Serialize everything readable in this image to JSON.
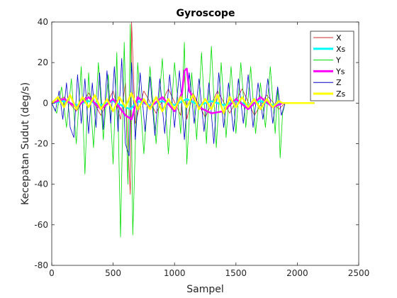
{
  "chart_data": {
    "type": "line",
    "title": "Gyroscope",
    "xlabel": "Sampel",
    "ylabel": "Kecepatan Sudut (deg/s)",
    "xlim": [
      0,
      2500
    ],
    "ylim": [
      -80,
      40
    ],
    "xticks": [
      0,
      500,
      1000,
      1500,
      2000,
      2500
    ],
    "xtick_labels": [
      "0",
      "500",
      "1000",
      "1500",
      "2000",
      "2500"
    ],
    "yticks": [
      -80,
      -60,
      -40,
      -20,
      0,
      20,
      40
    ],
    "ytick_labels": [
      "-80",
      "-60",
      "-40",
      "-20",
      "0",
      "20",
      "40"
    ],
    "grid": false,
    "legend_position": "top-right",
    "series": [
      {
        "name": "X",
        "color": "#d62728",
        "width": 0.8,
        "x": [
          0,
          100,
          200,
          300,
          400,
          500,
          560,
          600,
          620,
          640,
          650,
          680,
          750,
          850,
          950,
          1050,
          1080,
          1100,
          1150,
          1250,
          1350,
          1450,
          1550,
          1650,
          1750,
          1850,
          1900,
          2000,
          2140
        ],
        "y": [
          0,
          3,
          -4,
          5,
          -6,
          6,
          -8,
          10,
          -20,
          -45,
          40,
          -10,
          6,
          -5,
          7,
          -6,
          15,
          -8,
          5,
          -7,
          6,
          -5,
          7,
          -6,
          4,
          -3,
          0,
          0,
          0
        ]
      },
      {
        "name": "Xs",
        "color": "#00ffff",
        "width": 2.5,
        "x": [
          0,
          100,
          200,
          300,
          400,
          500,
          600,
          640,
          700,
          800,
          900,
          1000,
          1100,
          1200,
          1300,
          1400,
          1500,
          1600,
          1700,
          1800,
          1880,
          2000,
          2140
        ],
        "y": [
          0,
          1,
          -1,
          1,
          -1,
          1,
          -2,
          -3,
          1,
          -1,
          1,
          -1,
          2,
          -1,
          1,
          -1,
          1,
          -1,
          1,
          -1,
          0,
          0,
          0
        ]
      },
      {
        "name": "Y",
        "color": "#00dd00",
        "width": 0.8,
        "x": [
          0,
          40,
          80,
          120,
          160,
          200,
          240,
          270,
          300,
          340,
          380,
          420,
          460,
          500,
          530,
          560,
          590,
          620,
          640,
          660,
          700,
          750,
          800,
          850,
          900,
          950,
          1000,
          1050,
          1080,
          1100,
          1140,
          1180,
          1220,
          1260,
          1300,
          1340,
          1380,
          1420,
          1460,
          1500,
          1540,
          1580,
          1620,
          1660,
          1700,
          1740,
          1780,
          1820,
          1840,
          1860,
          1880,
          1900,
          2000,
          2140
        ],
        "y": [
          0,
          -5,
          8,
          -12,
          12,
          -20,
          18,
          -35,
          15,
          -22,
          20,
          -18,
          14,
          -30,
          25,
          -66,
          30,
          -40,
          39,
          -65,
          20,
          -25,
          18,
          -20,
          22,
          -25,
          20,
          -15,
          30,
          -30,
          15,
          -18,
          25,
          -20,
          28,
          -22,
          20,
          -17,
          18,
          -15,
          20,
          -12,
          18,
          -15,
          10,
          -12,
          18,
          -15,
          8,
          -27,
          -5,
          0,
          0,
          0
        ]
      },
      {
        "name": "Ys",
        "color": "#ff00ff",
        "width": 2.5,
        "x": [
          0,
          100,
          200,
          300,
          400,
          500,
          600,
          650,
          700,
          800,
          900,
          1000,
          1060,
          1080,
          1100,
          1120,
          1200,
          1300,
          1400,
          1500,
          1600,
          1700,
          1800,
          1880,
          2000,
          2140
        ],
        "y": [
          0,
          2,
          -2,
          3,
          -3,
          2,
          -6,
          -8,
          3,
          -2,
          3,
          -4,
          5,
          16,
          17,
          6,
          -2,
          -5,
          -4,
          2,
          -3,
          3,
          -2,
          0,
          0,
          0
        ]
      },
      {
        "name": "Z",
        "color": "#0000cc",
        "width": 0.8,
        "x": [
          0,
          30,
          60,
          90,
          120,
          150,
          180,
          210,
          240,
          270,
          300,
          330,
          360,
          390,
          420,
          450,
          480,
          510,
          540,
          570,
          600,
          630,
          650,
          680,
          720,
          760,
          800,
          840,
          880,
          920,
          960,
          1000,
          1040,
          1080,
          1120,
          1160,
          1200,
          1240,
          1280,
          1320,
          1360,
          1400,
          1440,
          1480,
          1520,
          1560,
          1600,
          1640,
          1680,
          1720,
          1760,
          1800,
          1840,
          1870,
          1900,
          2000,
          2140
        ],
        "y": [
          0,
          -4,
          6,
          -8,
          10,
          -12,
          -17,
          14,
          -10,
          12,
          -15,
          10,
          -12,
          15,
          -13,
          16,
          -10,
          18,
          -14,
          22,
          -20,
          -26,
          20,
          -18,
          15,
          -14,
          13,
          -16,
          12,
          -15,
          14,
          -12,
          16,
          -18,
          15,
          -10,
          12,
          -14,
          10,
          -20,
          15,
          -12,
          10,
          -14,
          12,
          -10,
          14,
          -12,
          10,
          -8,
          12,
          -10,
          8,
          -6,
          0,
          0,
          0
        ]
      },
      {
        "name": "Zs",
        "color": "#ffff00",
        "width": 2.5,
        "x": [
          0,
          50,
          100,
          150,
          200,
          250,
          300,
          350,
          400,
          450,
          500,
          550,
          600,
          650,
          700,
          750,
          800,
          850,
          900,
          950,
          1000,
          1050,
          1100,
          1150,
          1200,
          1250,
          1300,
          1350,
          1400,
          1450,
          1500,
          1550,
          1600,
          1650,
          1700,
          1750,
          1800,
          1850,
          1880,
          2000,
          2140
        ],
        "y": [
          0,
          3,
          -2,
          4,
          -3,
          3,
          -2,
          4,
          -3,
          2,
          -4,
          3,
          -2,
          5,
          -3,
          2,
          -3,
          3,
          -4,
          2,
          -3,
          3,
          -2,
          4,
          -3,
          2,
          -3,
          4,
          -5,
          3,
          -2,
          3,
          -2,
          2,
          -3,
          2,
          -2,
          1,
          0,
          0,
          0
        ]
      }
    ]
  }
}
